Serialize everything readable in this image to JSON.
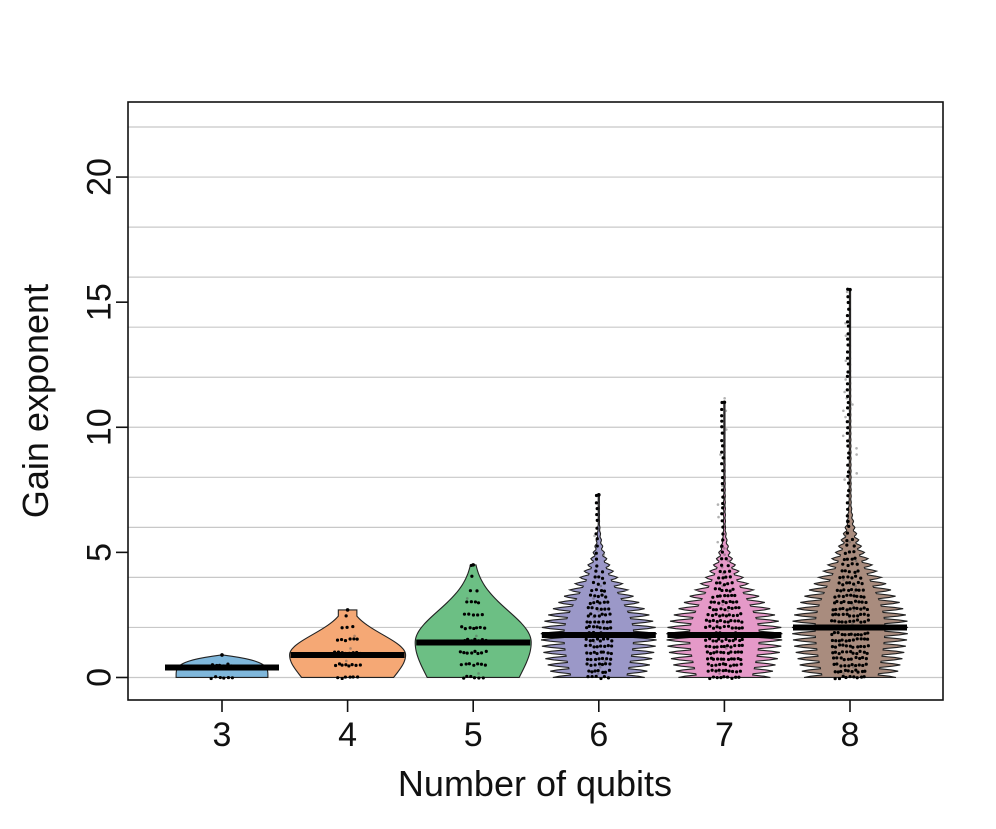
{
  "chart_data": {
    "type": "pirate",
    "xlabel": "Number of qubits",
    "ylabel": "Gain exponent",
    "ylim": [
      -0.9,
      23
    ],
    "yticks": [
      0,
      5,
      10,
      15,
      20
    ],
    "grid": true,
    "categories": [
      "3",
      "4",
      "5",
      "6",
      "7",
      "8"
    ],
    "series": [
      {
        "category": "3",
        "color": "#7fb7db",
        "max": 0.9,
        "median": 0.4
      },
      {
        "category": "4",
        "color": "#f5a875",
        "max": 2.7,
        "median": 0.9
      },
      {
        "category": "5",
        "color": "#6cbf84",
        "max": 4.5,
        "median": 1.4
      },
      {
        "category": "6",
        "color": "#9b98c8",
        "max": 7.3,
        "median": 1.7
      },
      {
        "category": "7",
        "color": "#e599c8",
        "max": 11.0,
        "median": 1.7
      },
      {
        "category": "8",
        "color": "#a98c7e",
        "max": 15.5,
        "median": 2.0
      }
    ]
  }
}
